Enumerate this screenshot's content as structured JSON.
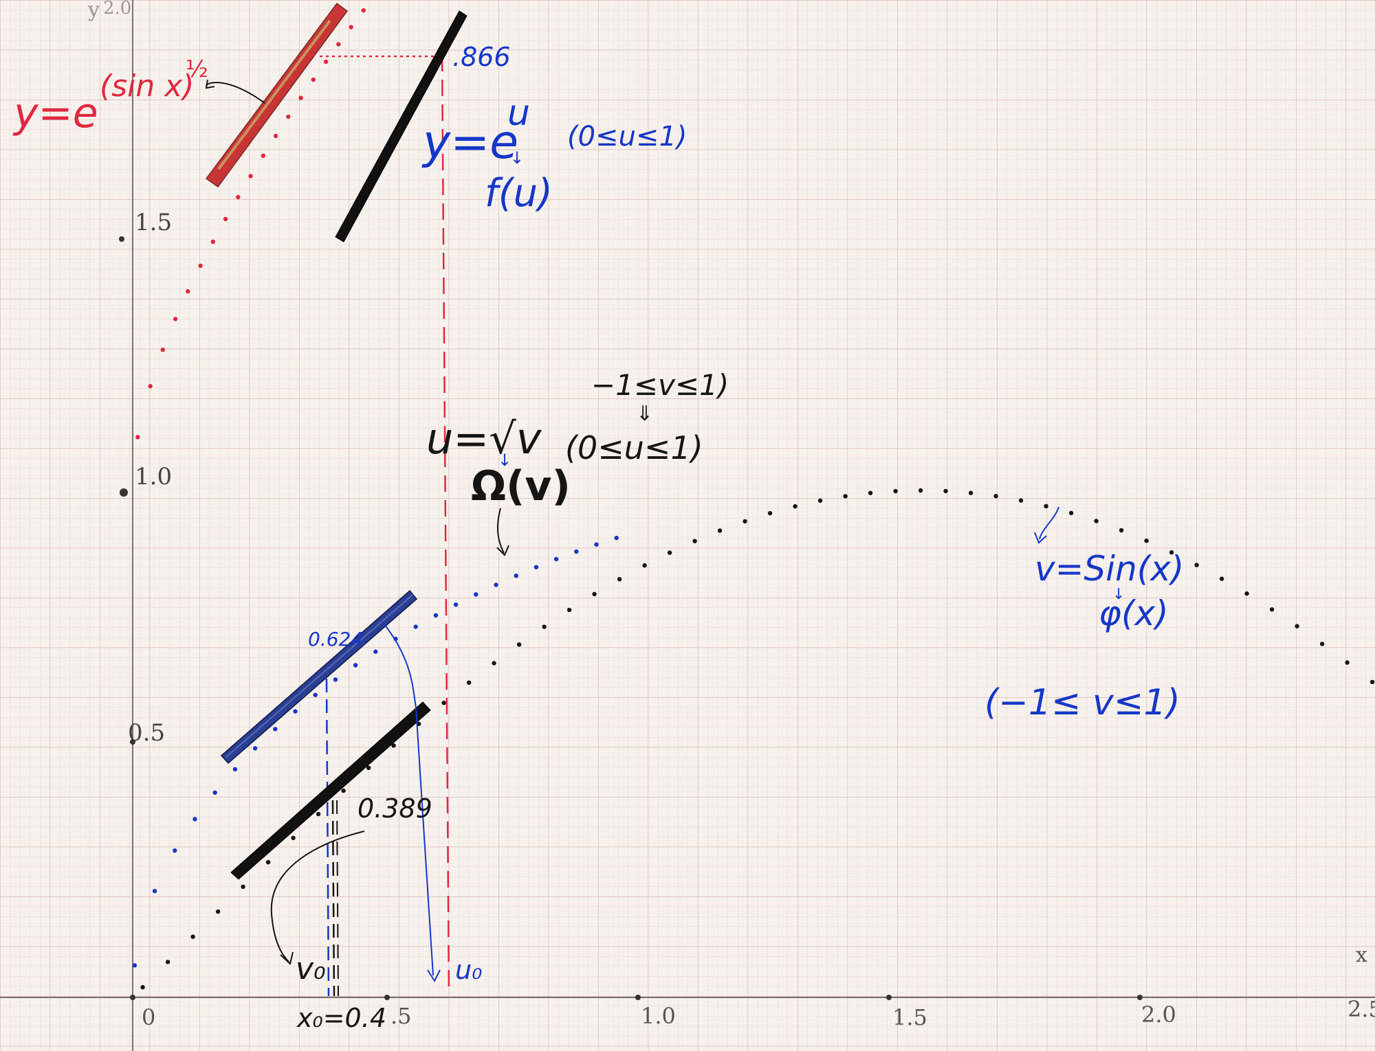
{
  "colors": {
    "paper": "#f6f1ec",
    "grid_minor": "#e6d6d3",
    "grid_major": "#d9b8b6",
    "axis": "#7a7070",
    "ink_black": "#151515",
    "ink_blue": "#1537c8",
    "ink_red": "#e02840",
    "stick_red": "#d23a3a",
    "stick_blue": "#2a3f93",
    "stick_black": "#111111"
  },
  "axes": {
    "y_label": "y",
    "y_ticks": [
      "1.5",
      "1.0",
      "0.5"
    ],
    "y_top_tick": "2.0",
    "x_label": "x",
    "x_ticks": [
      "0",
      ".5",
      "1.0",
      "1.5",
      "2.0",
      "2.5"
    ],
    "x_range": [
      0,
      2.5
    ],
    "y_range": [
      0,
      2.0
    ]
  },
  "curves": [
    {
      "formula": "v = sin(x)",
      "color": "black",
      "x_range": [
        0,
        2.5
      ]
    },
    {
      "formula": "u = sqrt(sin(x))",
      "color": "blue",
      "x_range": [
        0,
        0.8
      ]
    },
    {
      "formula": "y = e^(sin x)^(1/2)",
      "color": "red",
      "x_range": [
        0,
        0.48
      ]
    }
  ],
  "annotations": {
    "red_formula_base": "y=e",
    "red_formula_exp": "(sin x)",
    "red_formula_frac": "½",
    "value_866": ".866",
    "f_formula_main": "y=e",
    "f_formula_exp": "u",
    "f_formula_range": "(0≤u≤1)",
    "f_name": "f(u)",
    "omega_formula": "u=√v",
    "omega_range_top": "−1≤v≤1)",
    "omega_range_arrow": "⇓",
    "omega_range_bottom": "(0≤u≤1)",
    "omega_name": "Ω(v)",
    "phi_formula": "v=Sin(x)",
    "phi_name": "φ(x)",
    "phi_range": "(−1≤ v≤1)",
    "value_624": "0.624",
    "value_389": "0.389",
    "v0_label": "v₀",
    "u0_label": "u₀",
    "x0_label": "x₀=0.4"
  }
}
